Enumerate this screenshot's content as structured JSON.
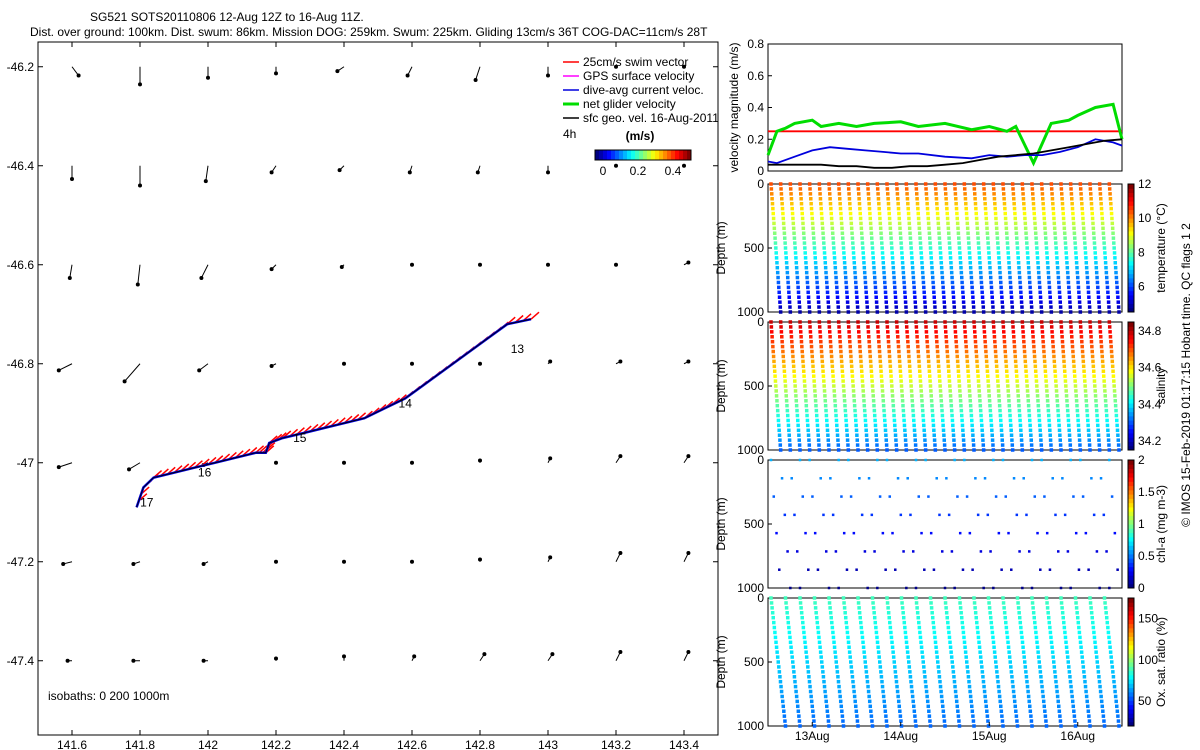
{
  "header": {
    "title_line1": "SG521 SOTS20110806 12-Aug 12Z to 16-Aug 11Z.",
    "title_line2": "Dist. over ground: 100km. Dist. swum: 86km. Mission DOG: 259km. Swum: 225km. Gliding 13cm/s 36T COG-DAC=11cm/s 28T"
  },
  "watermark": "© IMOS 15-Feb-2019 01:17:15 Hobart time. QC flags 1 2",
  "colors": {
    "red": "#ff0000",
    "magenta": "#ff00ff",
    "blue": "#0000dd",
    "green": "#00dd00",
    "black": "#000000"
  },
  "chart_data": [
    {
      "type": "scatter",
      "name_id": "track_map",
      "xlim": [
        141.5,
        143.5
      ],
      "ylim": [
        -47.55,
        -46.15
      ],
      "xticks": [
        141.6,
        141.8,
        142,
        142.2,
        142.4,
        142.6,
        142.8,
        143,
        143.2,
        143.4
      ],
      "xtick_labels": [
        "141.6",
        "141.8",
        "142",
        "142.2",
        "142.4",
        "142.6",
        "142.8",
        "143",
        "143.2",
        "143.4"
      ],
      "yticks": [
        -46.2,
        -46.4,
        -46.6,
        -46.8,
        -47,
        -47.2,
        -47.4
      ],
      "ytick_labels": [
        "-46.2",
        "-46.4",
        "-46.6",
        "-46.8",
        "-47",
        "-47.2",
        "-47.4"
      ],
      "legend": {
        "position": "top-right",
        "entries": [
          {
            "label": "25cm/s swim vector",
            "color": "#ff0000"
          },
          {
            "label": "GPS surface velocity",
            "color": "#ff00ff"
          },
          {
            "label": "dive-avg current veloc.",
            "color": "#0000dd"
          },
          {
            "label": "net glider velocity",
            "color": "#00dd00"
          },
          {
            "label": "sfc geo. vel. 16-Aug-2011",
            "color": "#000000"
          }
        ],
        "note": "4h",
        "colorbar_label": "(m/s)",
        "colorbar_ticks": [
          "0",
          "0.2",
          "0.4"
        ]
      },
      "isobaths_text": "isobaths: 0   200  1000m",
      "day_labels": [
        {
          "text": "13",
          "x": 142.91,
          "y": -46.77
        },
        {
          "text": "14",
          "x": 142.58,
          "y": -46.88
        },
        {
          "text": "15",
          "x": 142.27,
          "y": -46.95
        },
        {
          "text": "16",
          "x": 141.99,
          "y": -47.02
        },
        {
          "text": "17",
          "x": 141.82,
          "y": -47.08
        }
      ],
      "track": {
        "x": [
          142.95,
          142.88,
          142.82,
          142.76,
          142.7,
          142.64,
          142.58,
          142.52,
          142.46,
          142.4,
          142.34,
          142.28,
          142.22,
          142.18,
          142.17,
          142.14,
          142.08,
          142.02,
          141.96,
          141.9,
          141.84,
          141.81,
          141.79
        ],
        "y": [
          -46.71,
          -46.72,
          -46.75,
          -46.78,
          -46.81,
          -46.84,
          -46.87,
          -46.89,
          -46.91,
          -46.92,
          -46.93,
          -46.94,
          -46.95,
          -46.96,
          -46.98,
          -46.98,
          -46.99,
          -47.0,
          -47.01,
          -47.02,
          -47.03,
          -47.05,
          -47.09
        ]
      },
      "geo_vectors": {
        "lons": [
          141.6,
          141.8,
          142.0,
          142.2,
          142.4,
          142.6,
          142.8,
          143.0,
          143.2,
          143.4
        ],
        "lats": [
          -46.2,
          -46.4,
          -46.6,
          -46.8,
          -47.0,
          -47.2,
          -47.4
        ],
        "u": [
          [
            0.03,
            0.0,
            0.0,
            0.0,
            -0.03,
            -0.02,
            -0.02,
            0.0,
            0.0,
            0.0
          ],
          [
            0.0,
            0.0,
            -0.01,
            -0.02,
            -0.02,
            -0.01,
            -0.01,
            0.0,
            0.0,
            0.0
          ],
          [
            -0.01,
            -0.01,
            -0.03,
            -0.02,
            -0.01,
            0.0,
            0.0,
            0.0,
            0.0,
            0.02
          ],
          [
            -0.06,
            -0.07,
            -0.04,
            -0.02,
            0.0,
            0.0,
            0.0,
            0.01,
            0.02,
            0.02
          ],
          [
            -0.06,
            -0.05,
            -0.02,
            0.0,
            0.0,
            0.0,
            0.0,
            0.01,
            0.02,
            0.02
          ],
          [
            -0.04,
            -0.03,
            -0.02,
            0.0,
            0.0,
            0.0,
            0.0,
            0.01,
            0.02,
            0.02
          ],
          [
            -0.02,
            -0.03,
            -0.02,
            0.0,
            0.0,
            0.01,
            0.02,
            0.02,
            0.02,
            0.02
          ]
        ],
        "v": [
          [
            -0.04,
            -0.08,
            -0.05,
            -0.03,
            -0.02,
            -0.04,
            -0.06,
            -0.04,
            0.0,
            0.0
          ],
          [
            -0.06,
            -0.09,
            -0.07,
            -0.03,
            -0.02,
            -0.03,
            -0.03,
            -0.03,
            0.0,
            0.0
          ],
          [
            -0.06,
            -0.09,
            -0.06,
            -0.02,
            -0.01,
            0.0,
            0.0,
            0.0,
            0.0,
            0.01
          ],
          [
            -0.03,
            -0.08,
            -0.03,
            -0.01,
            0.0,
            0.0,
            0.0,
            0.01,
            0.01,
            0.01
          ],
          [
            -0.02,
            -0.03,
            -0.01,
            0.0,
            0.0,
            0.0,
            0.01,
            0.02,
            0.03,
            0.03
          ],
          [
            -0.01,
            -0.01,
            -0.01,
            0.0,
            0.0,
            0.0,
            0.01,
            0.02,
            0.04,
            0.04
          ],
          [
            0.0,
            0.0,
            0.0,
            0.01,
            0.02,
            0.02,
            0.03,
            0.03,
            0.04,
            0.04
          ]
        ]
      }
    },
    {
      "type": "line",
      "name_id": "velocity",
      "ylabel": "velocity magnitude (m/s)",
      "xlim": [
        12.5,
        16.5
      ],
      "ylim": [
        0,
        0.8
      ],
      "yticks": [
        0,
        0.2,
        0.4,
        0.6,
        0.8
      ],
      "ytick_labels": [
        "0",
        "0.2",
        "0.4",
        "0.6",
        "0.8"
      ],
      "series": [
        {
          "color": "#ff0000",
          "x": [
            12.5,
            16.5
          ],
          "y": [
            0.25,
            0.25
          ]
        },
        {
          "color": "#00dd00",
          "x": [
            12.5,
            12.6,
            12.7,
            12.8,
            13.0,
            13.1,
            13.3,
            13.5,
            13.7,
            14.0,
            14.2,
            14.5,
            14.8,
            15.0,
            15.2,
            15.3,
            15.5,
            15.7,
            15.9,
            16.0,
            16.2,
            16.4,
            16.5
          ],
          "y": [
            0.1,
            0.25,
            0.27,
            0.3,
            0.32,
            0.28,
            0.3,
            0.28,
            0.3,
            0.31,
            0.28,
            0.3,
            0.26,
            0.28,
            0.25,
            0.28,
            0.05,
            0.3,
            0.32,
            0.35,
            0.4,
            0.42,
            0.2
          ]
        },
        {
          "color": "#0000dd",
          "x": [
            12.5,
            12.6,
            12.8,
            13.0,
            13.2,
            13.4,
            13.6,
            13.8,
            14.0,
            14.2,
            14.5,
            14.8,
            15.0,
            15.2,
            15.4,
            15.6,
            15.8,
            16.0,
            16.2,
            16.4,
            16.5
          ],
          "y": [
            0.06,
            0.05,
            0.09,
            0.13,
            0.15,
            0.14,
            0.13,
            0.12,
            0.11,
            0.11,
            0.09,
            0.08,
            0.1,
            0.09,
            0.1,
            0.1,
            0.12,
            0.15,
            0.2,
            0.18,
            0.16
          ]
        },
        {
          "color": "#000000",
          "x": [
            12.5,
            12.7,
            12.9,
            13.1,
            13.3,
            13.5,
            13.7,
            13.9,
            14.1,
            14.3,
            14.5,
            14.7,
            14.9,
            15.1,
            15.3,
            15.5,
            15.7,
            15.9,
            16.1,
            16.3,
            16.5
          ],
          "y": [
            0.04,
            0.04,
            0.04,
            0.04,
            0.03,
            0.03,
            0.02,
            0.02,
            0.03,
            0.03,
            0.04,
            0.05,
            0.07,
            0.09,
            0.1,
            0.11,
            0.13,
            0.15,
            0.17,
            0.19,
            0.2
          ]
        }
      ]
    },
    {
      "type": "scatter",
      "name_id": "temperature",
      "ylabel": "Depth (m)",
      "cbar_label": "temperature (°C)",
      "ylim": [
        0,
        1000
      ],
      "yticks": [
        0,
        500,
        1000
      ],
      "ytick_labels": [
        "0",
        "500",
        "1000"
      ],
      "cbar_range": [
        4.5,
        12
      ],
      "cbar_ticks": [
        "6",
        "8",
        "10",
        "12"
      ],
      "n_profiles": 18,
      "max_depth": 1000,
      "sparse": false,
      "v_top": 10.5,
      "v_bottom": 4.8
    },
    {
      "type": "scatter",
      "name_id": "salinity",
      "ylabel": "Depth (m)",
      "cbar_label": "salinity",
      "ylim": [
        0,
        1000
      ],
      "yticks": [
        0,
        500,
        1000
      ],
      "ytick_labels": [
        "0",
        "500",
        "1000"
      ],
      "cbar_range": [
        34.15,
        34.85
      ],
      "cbar_ticks": [
        "34.2",
        "34.4",
        "34.6",
        "34.8"
      ],
      "n_profiles": 18,
      "max_depth": 1000,
      "sparse": false,
      "v_top": 34.8,
      "v_bottom": 34.3
    },
    {
      "type": "scatter",
      "name_id": "chla",
      "ylabel": "Depth (m)",
      "cbar_label": "chl-a (mg m-3)",
      "ylim": [
        0,
        1000
      ],
      "yticks": [
        0,
        500,
        1000
      ],
      "ytick_labels": [
        "0",
        "500",
        "1000"
      ],
      "cbar_range": [
        0,
        2
      ],
      "cbar_ticks": [
        "0",
        "0.5",
        "1",
        "1.5",
        "2"
      ],
      "n_profiles": 18,
      "max_depth": 1000,
      "sparse": true,
      "v_top": 0.6,
      "v_bottom": 0.02
    },
    {
      "type": "scatter",
      "name_id": "oxygen",
      "ylabel": "Depth (m)",
      "cbar_label": "Ox. sat. ratio (%)",
      "ylim": [
        0,
        1000
      ],
      "yticks": [
        0,
        500,
        1000
      ],
      "ytick_labels": [
        "0",
        "500",
        "1000"
      ],
      "cbar_range": [
        20,
        175
      ],
      "cbar_ticks": [
        "50",
        "100",
        "150"
      ],
      "n_profiles": 12,
      "max_depth": 1000,
      "sparse": false,
      "v_top": 88,
      "v_bottom": 55,
      "xlim": [
        12.5,
        16.5
      ],
      "xticks": [
        13,
        14,
        15,
        16
      ],
      "xtick_labels": [
        "13Aug",
        "14Aug",
        "15Aug",
        "16Aug"
      ]
    }
  ]
}
